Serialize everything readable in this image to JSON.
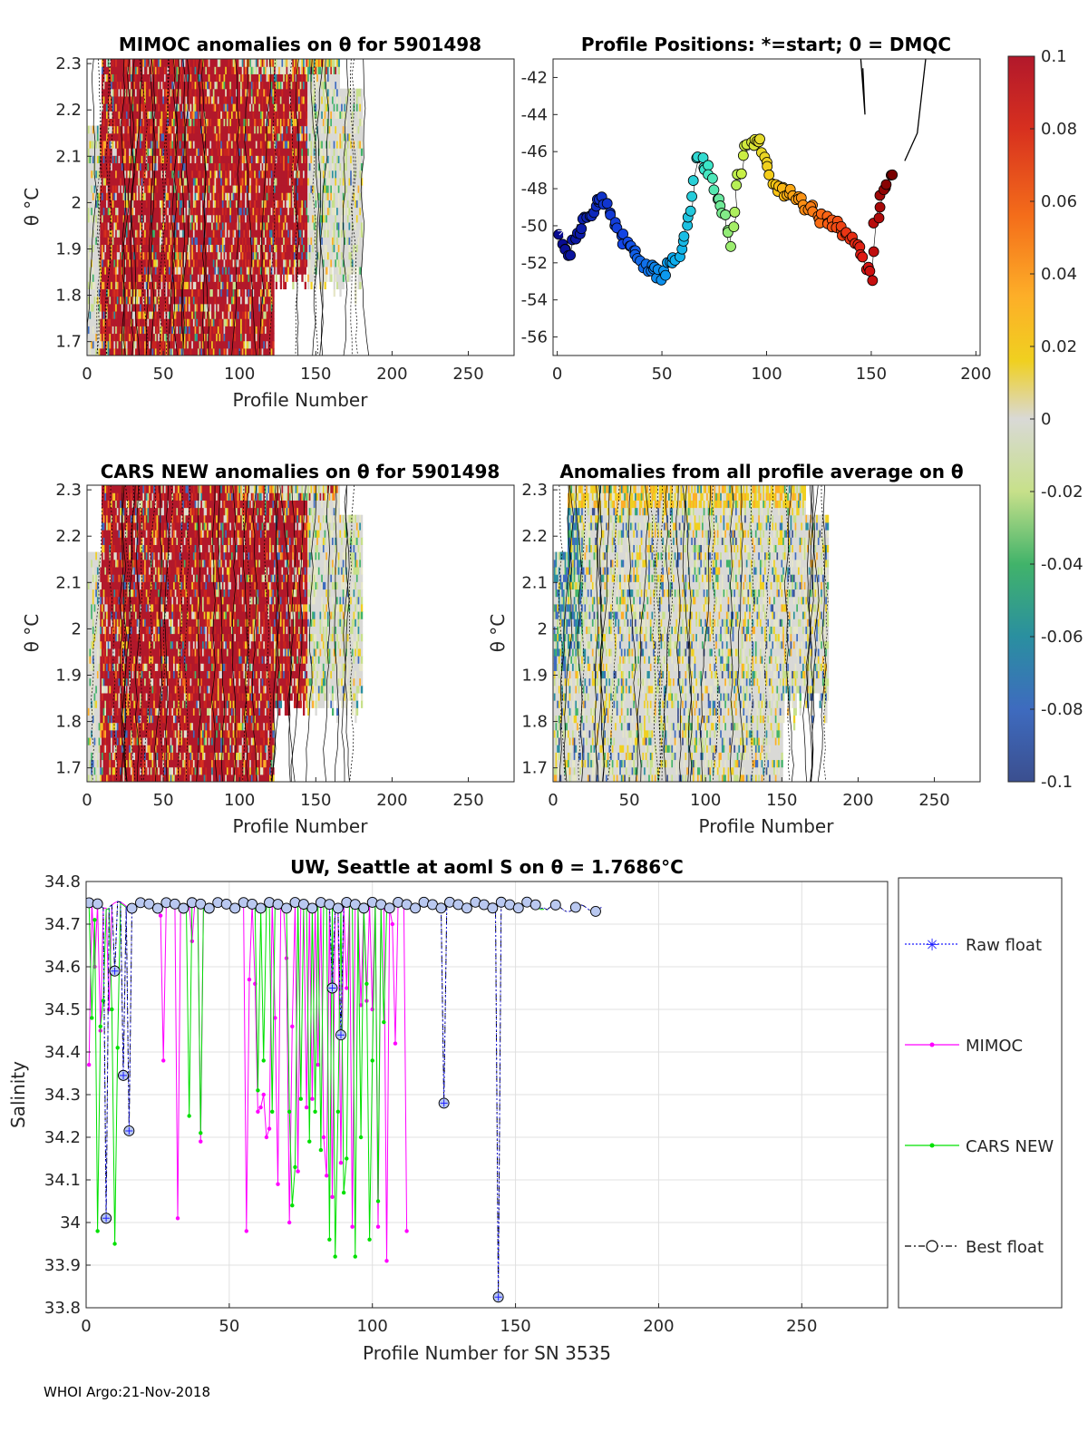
{
  "footer": "WHOI Argo:21-Nov-2018",
  "colorbar": {
    "min": -0.1,
    "max": 0.1,
    "tick_labels": [
      "0.1",
      "0.08",
      "0.06",
      "0.04",
      "0.02",
      "0",
      "-0.02",
      "-0.04",
      "-0.06",
      "-0.08",
      "-0.1"
    ]
  },
  "chart_data": [
    {
      "type": "heatmap",
      "id": "p1",
      "title": "MIMOC anomalies on θ  for 5901498",
      "xlabel": "Profile Number",
      "ylabel": "θ °C",
      "xlim": [
        0,
        280
      ],
      "ylim": [
        1.67,
        2.31
      ],
      "xticks": [
        "0",
        "50",
        "100",
        "150",
        "200",
        "250"
      ],
      "yticks": [
        "1.7",
        "1.8",
        "1.9",
        "2",
        "2.1",
        "2.2",
        "2.3"
      ],
      "data_extent_profiles": [
        1,
        180
      ],
      "dominant_anomaly": "positive (>0.08) for profiles 10-145, near zero for 145-180"
    },
    {
      "type": "scatter",
      "id": "p2",
      "title": "Profile Positions: *=start; 0 = DMQC",
      "xlim": [
        -2,
        202
      ],
      "ylim": [
        -57,
        -41
      ],
      "xticks": [
        "0",
        "50",
        "100",
        "150",
        "200"
      ],
      "yticks": [
        "-42",
        "-44",
        "-46",
        "-48",
        "-50",
        "-52",
        "-54",
        "-56"
      ],
      "note": "lon/lat track of 180 profiles colored by profile number, start marked with *"
    },
    {
      "type": "heatmap",
      "id": "p3",
      "title": "CARS NEW anomalies on θ for 5901498",
      "xlabel": "Profile Number",
      "ylabel": "θ °C",
      "xlim": [
        0,
        280
      ],
      "ylim": [
        1.67,
        2.31
      ],
      "xticks": [
        "0",
        "50",
        "100",
        "150",
        "200",
        "250"
      ],
      "yticks": [
        "1.7",
        "1.8",
        "1.9",
        "2",
        "2.1",
        "2.2",
        "2.3"
      ],
      "data_extent_profiles": [
        1,
        180
      ]
    },
    {
      "type": "heatmap",
      "id": "p4",
      "title": "Anomalies from all profile average on θ",
      "xlabel": "Profile Number",
      "ylabel": "θ °C",
      "xlim": [
        0,
        280
      ],
      "ylim": [
        1.67,
        2.31
      ],
      "xticks": [
        "0",
        "50",
        "100",
        "150",
        "200",
        "250"
      ],
      "yticks": [
        "1.7",
        "1.8",
        "1.9",
        "2",
        "2.1",
        "2.2",
        "2.3"
      ],
      "data_extent_profiles": [
        1,
        180
      ]
    },
    {
      "type": "line",
      "id": "p5",
      "title": "UW, Seattle at aoml S on θ = 1.7686°C",
      "xlabel": "Profile Number for SN 3535",
      "ylabel": "Salinity",
      "xlim": [
        0,
        280
      ],
      "ylim": [
        33.8,
        34.8
      ],
      "xticks": [
        "0",
        "50",
        "100",
        "150",
        "200",
        "250"
      ],
      "yticks": [
        "33.8",
        "33.9",
        "34",
        "34.1",
        "34.2",
        "34.3",
        "34.4",
        "34.5",
        "34.6",
        "34.7",
        "34.8"
      ],
      "legend": [
        "Raw float",
        "MIMOC",
        "CARS NEW",
        "Best float"
      ],
      "legend_position": "right",
      "baseline_salinity": 34.75,
      "float_outliers": [
        {
          "x": 7,
          "y": 34.01
        },
        {
          "x": 10,
          "y": 34.59
        },
        {
          "x": 13,
          "y": 34.345
        },
        {
          "x": 15,
          "y": 34.215
        },
        {
          "x": 86,
          "y": 34.55
        },
        {
          "x": 89,
          "y": 34.44
        },
        {
          "x": 125,
          "y": 34.28
        },
        {
          "x": 144,
          "y": 33.825
        }
      ],
      "mimoc_dips": [
        {
          "x": 1,
          "y": 34.37
        },
        {
          "x": 3,
          "y": 34.6
        },
        {
          "x": 5,
          "y": 34.45
        },
        {
          "x": 8,
          "y": 34.5
        },
        {
          "x": 26,
          "y": 34.72
        },
        {
          "x": 27,
          "y": 34.38
        },
        {
          "x": 32,
          "y": 34.01
        },
        {
          "x": 37,
          "y": 34.66
        },
        {
          "x": 40,
          "y": 34.19
        },
        {
          "x": 56,
          "y": 33.98
        },
        {
          "x": 57,
          "y": 34.57
        },
        {
          "x": 59,
          "y": 34.56
        },
        {
          "x": 60,
          "y": 34.26
        },
        {
          "x": 61,
          "y": 34.27
        },
        {
          "x": 62,
          "y": 34.3
        },
        {
          "x": 63,
          "y": 34.2
        },
        {
          "x": 64,
          "y": 34.22
        },
        {
          "x": 66,
          "y": 34.48
        },
        {
          "x": 67,
          "y": 34.09
        },
        {
          "x": 70,
          "y": 34.62
        },
        {
          "x": 71,
          "y": 34.0
        },
        {
          "x": 72,
          "y": 34.46
        },
        {
          "x": 74,
          "y": 34.12
        },
        {
          "x": 77,
          "y": 34.27
        },
        {
          "x": 79,
          "y": 34.29
        },
        {
          "x": 81,
          "y": 34.37
        },
        {
          "x": 83,
          "y": 34.2
        },
        {
          "x": 84,
          "y": 34.11
        },
        {
          "x": 86,
          "y": 34.06
        },
        {
          "x": 89,
          "y": 34.14
        },
        {
          "x": 91,
          "y": 34.55
        },
        {
          "x": 93,
          "y": 33.99
        },
        {
          "x": 96,
          "y": 34.51
        },
        {
          "x": 98,
          "y": 34.52
        },
        {
          "x": 100,
          "y": 34.5
        },
        {
          "x": 102,
          "y": 33.99
        },
        {
          "x": 105,
          "y": 33.91
        },
        {
          "x": 107,
          "y": 34.7
        },
        {
          "x": 108,
          "y": 34.42
        },
        {
          "x": 112,
          "y": 33.98
        }
      ],
      "cars_dips": [
        {
          "x": 2,
          "y": 34.48
        },
        {
          "x": 3,
          "y": 34.71
        },
        {
          "x": 4,
          "y": 33.98
        },
        {
          "x": 5,
          "y": 34.46
        },
        {
          "x": 6,
          "y": 34.52
        },
        {
          "x": 9,
          "y": 34.5
        },
        {
          "x": 10,
          "y": 33.95
        },
        {
          "x": 11,
          "y": 34.41
        },
        {
          "x": 36,
          "y": 34.25
        },
        {
          "x": 40,
          "y": 34.21
        },
        {
          "x": 60,
          "y": 34.31
        },
        {
          "x": 62,
          "y": 34.38
        },
        {
          "x": 65,
          "y": 34.26
        },
        {
          "x": 71,
          "y": 34.26
        },
        {
          "x": 72,
          "y": 34.04
        },
        {
          "x": 73,
          "y": 34.13
        },
        {
          "x": 75,
          "y": 34.29
        },
        {
          "x": 78,
          "y": 34.19
        },
        {
          "x": 80,
          "y": 34.26
        },
        {
          "x": 82,
          "y": 34.17
        },
        {
          "x": 85,
          "y": 33.96
        },
        {
          "x": 87,
          "y": 33.92
        },
        {
          "x": 88,
          "y": 34.26
        },
        {
          "x": 90,
          "y": 34.07
        },
        {
          "x": 91,
          "y": 34.15
        },
        {
          "x": 94,
          "y": 33.92
        },
        {
          "x": 96,
          "y": 34.2
        },
        {
          "x": 98,
          "y": 34.56
        },
        {
          "x": 99,
          "y": 33.96
        },
        {
          "x": 100,
          "y": 34.38
        },
        {
          "x": 102,
          "y": 34.05
        },
        {
          "x": 104,
          "y": 34.47
        }
      ]
    }
  ]
}
